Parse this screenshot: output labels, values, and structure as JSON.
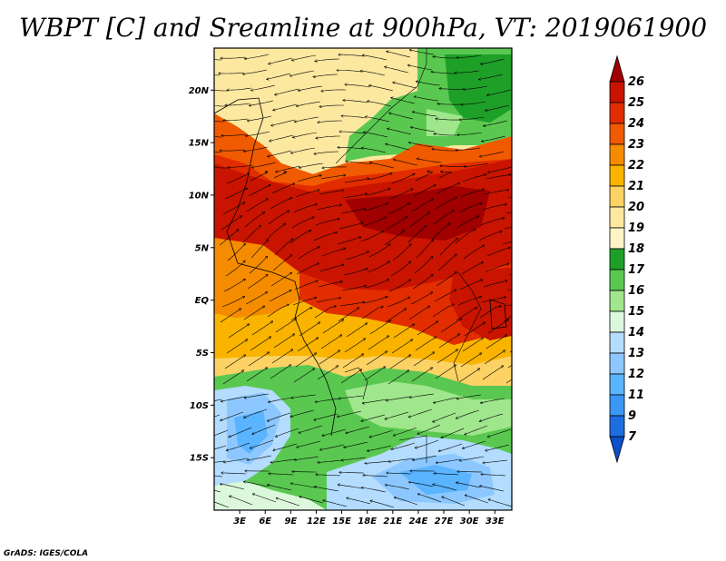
{
  "title": "WBPT [C] and Sreamline at 900hPa, VT: 2019061900",
  "footer": "GrADS: IGES/COLA",
  "map": {
    "lon_range": [
      0,
      35
    ],
    "lat_range": [
      -20,
      24
    ],
    "lat_ticks": [
      {
        "value": 20,
        "label": "20N"
      },
      {
        "value": 15,
        "label": "15N"
      },
      {
        "value": 10,
        "label": "10N"
      },
      {
        "value": 5,
        "label": "5N"
      },
      {
        "value": 0,
        "label": "EQ"
      },
      {
        "value": -5,
        "label": "5S"
      },
      {
        "value": -10,
        "label": "10S"
      },
      {
        "value": -15,
        "label": "15S"
      }
    ],
    "lon_ticks": [
      {
        "value": 3,
        "label": "3E"
      },
      {
        "value": 6,
        "label": "6E"
      },
      {
        "value": 9,
        "label": "9E"
      },
      {
        "value": 12,
        "label": "12E"
      },
      {
        "value": 15,
        "label": "15E"
      },
      {
        "value": 18,
        "label": "18E"
      },
      {
        "value": 21,
        "label": "21E"
      },
      {
        "value": 24,
        "label": "24E"
      },
      {
        "value": 27,
        "label": "27E"
      },
      {
        "value": 30,
        "label": "30E"
      },
      {
        "value": 33,
        "label": "33E"
      }
    ]
  },
  "colorbar": {
    "levels": [
      {
        "label": "26",
        "color": "#a00000"
      },
      {
        "label": "25",
        "color": "#c81400"
      },
      {
        "label": "24",
        "color": "#e12d00"
      },
      {
        "label": "23",
        "color": "#f05a00"
      },
      {
        "label": "22",
        "color": "#f58c00"
      },
      {
        "label": "21",
        "color": "#fab400"
      },
      {
        "label": "20",
        "color": "#fcd264"
      },
      {
        "label": "19",
        "color": "#fde8a0"
      },
      {
        "label": "18",
        "color": "#fdf5c8"
      },
      {
        "label": "17",
        "color": "#1ea028"
      },
      {
        "label": "16",
        "color": "#5ac850"
      },
      {
        "label": "15",
        "color": "#a0e68c"
      },
      {
        "label": "14",
        "color": "#dcf8dc"
      },
      {
        "label": "13",
        "color": "#b4dcff"
      },
      {
        "label": "12",
        "color": "#8cc8ff"
      },
      {
        "label": "11",
        "color": "#5ab4ff"
      },
      {
        "label": "9",
        "color": "#3c96f5"
      },
      {
        "label": "7",
        "color": "#1e6ee1"
      }
    ],
    "bottom_color": "#0a50c8"
  }
}
